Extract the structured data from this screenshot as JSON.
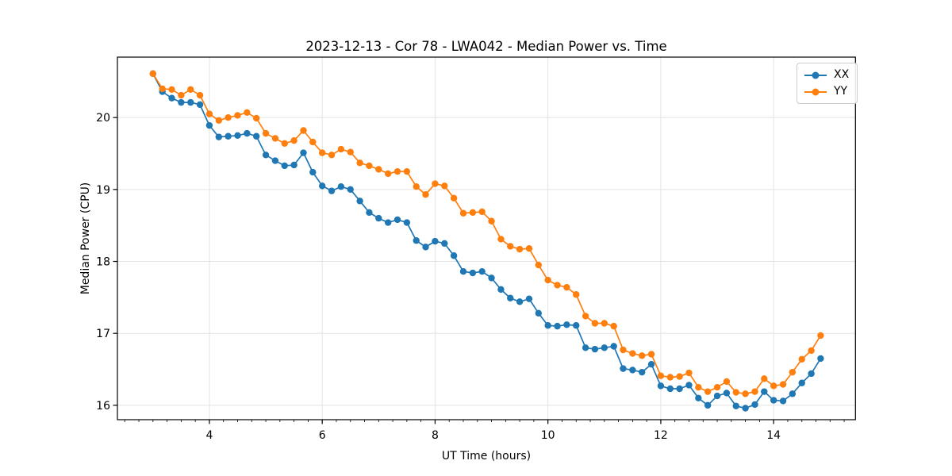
{
  "figure": {
    "background": "#ffffff"
  },
  "chart_data": {
    "type": "line",
    "title": "2023-12-13 - Cor 78 - LWA042 - Median Power vs. Time",
    "xlabel": "UT Time (hours)",
    "ylabel": "Median Power (CPU)",
    "xlim": [
      2.37,
      15.45
    ],
    "ylim": [
      15.8,
      20.84
    ],
    "x_ticks": [
      4,
      6,
      8,
      10,
      12,
      14
    ],
    "y_ticks": [
      16,
      17,
      18,
      19,
      20
    ],
    "x_minor_tick_step": 0.25,
    "grid": true,
    "grid_color": "#e3e3e3",
    "spine_color": "#000000",
    "legend_position": "upper right",
    "x": [
      3.0,
      3.167,
      3.333,
      3.5,
      3.667,
      3.833,
      4.0,
      4.167,
      4.333,
      4.5,
      4.667,
      4.833,
      5.0,
      5.167,
      5.333,
      5.5,
      5.667,
      5.833,
      6.0,
      6.167,
      6.333,
      6.5,
      6.667,
      6.833,
      7.0,
      7.167,
      7.333,
      7.5,
      7.667,
      7.833,
      8.0,
      8.167,
      8.333,
      8.5,
      8.667,
      8.833,
      9.0,
      9.167,
      9.333,
      9.5,
      9.667,
      9.833,
      10.0,
      10.167,
      10.333,
      10.5,
      10.667,
      10.833,
      11.0,
      11.167,
      11.333,
      11.5,
      11.667,
      11.833,
      12.0,
      12.167,
      12.333,
      12.5,
      12.667,
      12.833,
      13.0,
      13.167,
      13.333,
      13.5,
      13.667,
      13.833,
      14.0,
      14.167,
      14.333,
      14.5,
      14.667,
      14.833
    ],
    "series": [
      {
        "name": "XX",
        "color": "#1f77b4",
        "marker": "circle",
        "values": [
          20.61,
          20.36,
          20.27,
          20.21,
          20.21,
          20.18,
          19.89,
          19.73,
          19.74,
          19.75,
          19.78,
          19.74,
          19.48,
          19.4,
          19.33,
          19.34,
          19.51,
          19.24,
          19.05,
          18.98,
          19.04,
          19.0,
          18.84,
          18.68,
          18.6,
          18.54,
          18.58,
          18.54,
          18.29,
          18.2,
          18.28,
          18.25,
          18.08,
          17.86,
          17.84,
          17.86,
          17.77,
          17.61,
          17.49,
          17.44,
          17.48,
          17.28,
          17.11,
          17.1,
          17.12,
          17.11,
          16.8,
          16.78,
          16.8,
          16.82,
          16.51,
          16.49,
          16.46,
          16.57,
          16.27,
          16.23,
          16.23,
          16.28,
          16.1,
          16.0,
          16.13,
          16.17,
          15.99,
          15.96,
          16.01,
          16.19,
          16.07,
          16.06,
          16.16,
          16.31,
          16.44,
          16.65
        ]
      },
      {
        "name": "YY",
        "color": "#ff7f0e",
        "marker": "circle",
        "values": [
          20.61,
          20.4,
          20.39,
          20.31,
          20.39,
          20.31,
          20.05,
          19.96,
          20.0,
          20.03,
          20.07,
          19.99,
          19.78,
          19.71,
          19.64,
          19.68,
          19.82,
          19.66,
          19.51,
          19.48,
          19.56,
          19.52,
          19.37,
          19.33,
          19.28,
          19.22,
          19.25,
          19.25,
          19.04,
          18.93,
          19.08,
          19.05,
          18.88,
          18.67,
          18.68,
          18.69,
          18.56,
          18.31,
          18.21,
          18.17,
          18.18,
          17.95,
          17.74,
          17.67,
          17.64,
          17.54,
          17.24,
          17.14,
          17.14,
          17.1,
          16.77,
          16.72,
          16.69,
          16.71,
          16.41,
          16.39,
          16.4,
          16.45,
          16.25,
          16.19,
          16.25,
          16.33,
          16.18,
          16.16,
          16.19,
          16.37,
          16.27,
          16.29,
          16.46,
          16.64,
          16.76,
          16.97
        ]
      }
    ]
  }
}
